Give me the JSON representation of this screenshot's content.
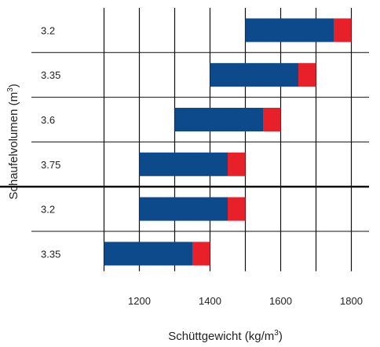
{
  "chart_data": {
    "type": "bar",
    "orientation": "horizontal-range",
    "xlabel_main": "Schüttgewicht (kg/m",
    "xlabel_sup": "3",
    "xlabel_end": ")",
    "ylabel_main": "Schaufelvolumen (m",
    "ylabel_sup": "3",
    "ylabel_end": ")",
    "x_ticks": [
      "1200",
      "1400",
      "1600",
      "1800"
    ],
    "x_tick_values": [
      1200,
      1400,
      1600,
      1800
    ],
    "xlim": [
      1050,
      1850
    ],
    "grid": true,
    "colors": {
      "main": "#0d4a8c",
      "end": "#e8202a",
      "grid": "#111111"
    },
    "categories": [
      "3.2",
      "3.35",
      "3.6",
      "3.75",
      "3.2",
      "3.35"
    ],
    "ranges": [
      {
        "start": 1500,
        "blue_end": 1750,
        "end": 1800
      },
      {
        "start": 1400,
        "blue_end": 1650,
        "end": 1700
      },
      {
        "start": 1300,
        "blue_end": 1550,
        "end": 1600
      },
      {
        "start": 1200,
        "blue_end": 1450,
        "end": 1500
      },
      {
        "start": 1200,
        "blue_end": 1450,
        "end": 1500
      },
      {
        "start": 1100,
        "blue_end": 1350,
        "end": 1400
      }
    ],
    "separator_after_index": 3
  }
}
